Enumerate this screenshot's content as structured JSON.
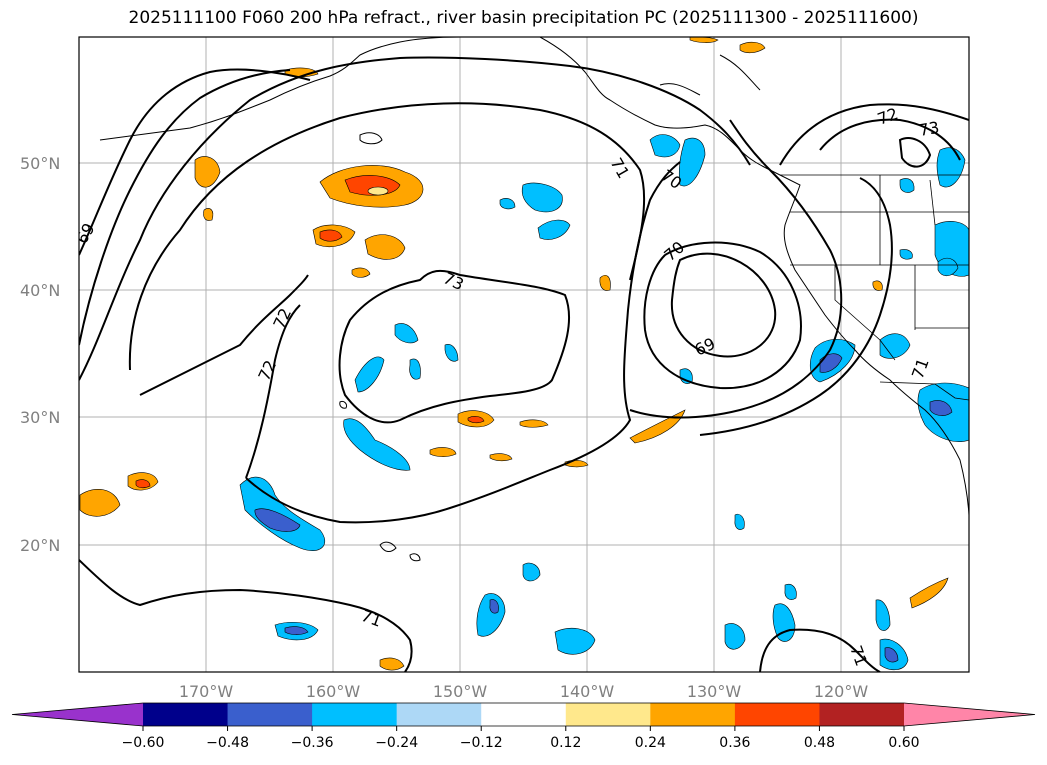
{
  "title": "2025111100 F060 200 hPa refract., river basin precipitation PC (2025111300 - 2025111600)",
  "map": {
    "lat_labels": [
      "50°N",
      "40°N",
      "30°N",
      "20°N"
    ],
    "lon_labels": [
      "170°W",
      "160°W",
      "150°W",
      "140°W",
      "130°W",
      "120°W"
    ],
    "contour_labels": [
      "69",
      "69",
      "70",
      "70",
      "71",
      "71",
      "72",
      "72",
      "72",
      "73",
      "73",
      "71",
      "71"
    ]
  },
  "colorbar": {
    "colors": [
      "#9932cc",
      "#00008b",
      "#3a5fcd",
      "#00bfff",
      "#add8f6",
      "#ffffff",
      "#ffe88c",
      "#ffa500",
      "#ff4500",
      "#b22222",
      "#ff85a8"
    ],
    "tick_labels": [
      "−0.60",
      "−0.48",
      "−0.36",
      "−0.24",
      "−0.12",
      "0.12",
      "0.24",
      "0.36",
      "0.48",
      "0.60"
    ]
  }
}
